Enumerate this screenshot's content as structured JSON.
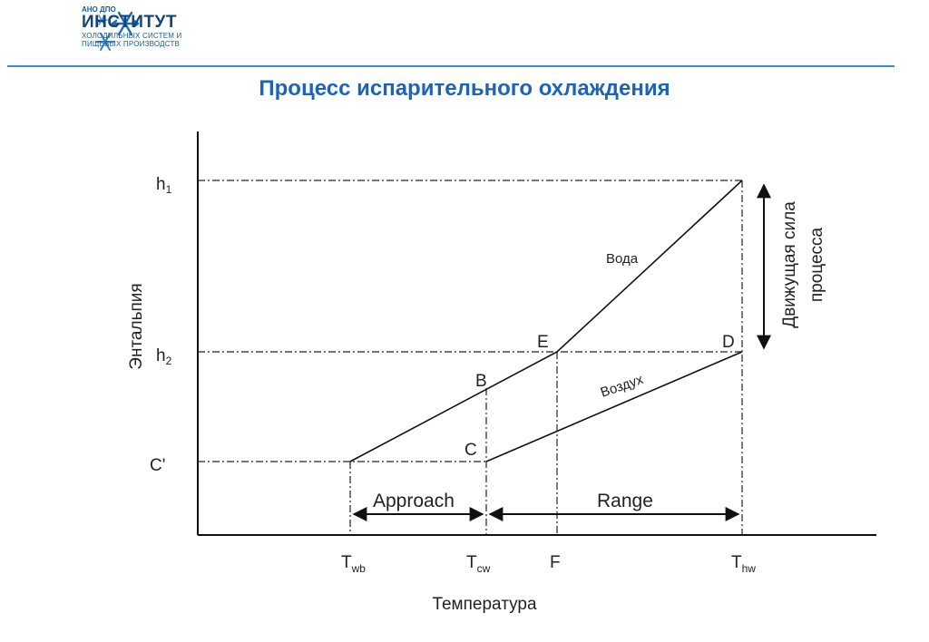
{
  "header": {
    "logo_small": "АНО ДПО",
    "logo_name": "ИНСТИТУТ",
    "logo_sub1": "ХОЛОДИЛЬНЫХ СИСТЕМ И",
    "logo_sub2": "ПИЩЕВЫХ ПРОИЗВОДСТВ",
    "accent_color": "#1d64b8"
  },
  "title": "Процесс испарительного охлаждения",
  "diagram": {
    "y_axis_label": "Энтальпия",
    "x_axis_label": "Температура",
    "y_ticks": [
      {
        "main": "h",
        "sub": "1"
      },
      {
        "main": "h",
        "sub": "2"
      },
      {
        "main": "C'",
        "sub": ""
      }
    ],
    "x_ticks": [
      {
        "main": "T",
        "sub": "wb"
      },
      {
        "main": "T",
        "sub": "cw"
      },
      {
        "main": "F",
        "sub": ""
      },
      {
        "main": "T",
        "sub": "hw"
      }
    ],
    "points": {
      "B": "B",
      "C": "C",
      "D": "D",
      "E": "E"
    },
    "water_label": "Вода",
    "air_label": "Воздух",
    "approach_label": "Approach",
    "range_label": "Range",
    "driving_force_line1": "Движущая сила",
    "driving_force_line2": "процесса"
  }
}
